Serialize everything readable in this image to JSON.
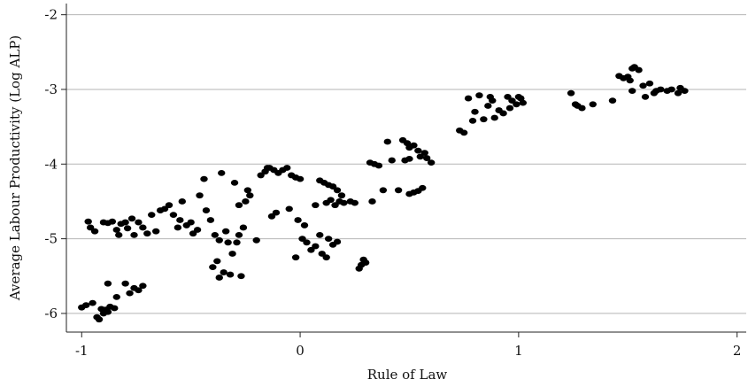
{
  "chart_data": {
    "type": "scatter",
    "xlabel": "Rule of Law",
    "ylabel": "Average Labour Productivity (Log ALP)",
    "xlim": [
      -1.07,
      2.05
    ],
    "ylim": [
      -6.25,
      -1.85
    ],
    "x_ticks": [
      {
        "value": -1,
        "label": "-1"
      },
      {
        "value": 0,
        "label": "0"
      },
      {
        "value": 1,
        "label": "1"
      },
      {
        "value": 2,
        "label": "2"
      }
    ],
    "y_ticks": [
      {
        "value": -2,
        "label": "-2"
      },
      {
        "value": -3,
        "label": "-3"
      },
      {
        "value": -4,
        "label": "-4"
      },
      {
        "value": -5,
        "label": "-5"
      },
      {
        "value": -6,
        "label": "-6"
      }
    ],
    "grid": "horizontal",
    "legend": "none",
    "marker_color": "#000000",
    "points": [
      {
        "x": -1.0,
        "y": -5.92
      },
      {
        "x": -0.98,
        "y": -5.89
      },
      {
        "x": -0.95,
        "y": -5.86
      },
      {
        "x": -0.93,
        "y": -6.05
      },
      {
        "x": -0.92,
        "y": -6.08
      },
      {
        "x": -0.9,
        "y": -6.0
      },
      {
        "x": -0.89,
        "y": -5.95
      },
      {
        "x": -0.88,
        "y": -5.98
      },
      {
        "x": -0.87,
        "y": -5.91
      },
      {
        "x": -0.85,
        "y": -5.93
      },
      {
        "x": -0.91,
        "y": -5.94
      },
      {
        "x": -0.88,
        "y": -5.6
      },
      {
        "x": -0.84,
        "y": -5.78
      },
      {
        "x": -0.8,
        "y": -5.6
      },
      {
        "x": -0.78,
        "y": -5.73
      },
      {
        "x": -0.76,
        "y": -5.66
      },
      {
        "x": -0.74,
        "y": -5.69
      },
      {
        "x": -0.72,
        "y": -5.63
      },
      {
        "x": -0.97,
        "y": -4.77
      },
      {
        "x": -0.96,
        "y": -4.85
      },
      {
        "x": -0.94,
        "y": -4.9
      },
      {
        "x": -0.9,
        "y": -4.78
      },
      {
        "x": -0.88,
        "y": -4.79
      },
      {
        "x": -0.86,
        "y": -4.77
      },
      {
        "x": -0.84,
        "y": -4.88
      },
      {
        "x": -0.83,
        "y": -4.95
      },
      {
        "x": -0.82,
        "y": -4.8
      },
      {
        "x": -0.8,
        "y": -4.78
      },
      {
        "x": -0.79,
        "y": -4.86
      },
      {
        "x": -0.77,
        "y": -4.73
      },
      {
        "x": -0.76,
        "y": -4.95
      },
      {
        "x": -0.74,
        "y": -4.78
      },
      {
        "x": -0.72,
        "y": -4.85
      },
      {
        "x": -0.7,
        "y": -4.93
      },
      {
        "x": -0.68,
        "y": -4.68
      },
      {
        "x": -0.66,
        "y": -4.9
      },
      {
        "x": -0.64,
        "y": -4.62
      },
      {
        "x": -0.62,
        "y": -4.6
      },
      {
        "x": -0.6,
        "y": -4.55
      },
      {
        "x": -0.58,
        "y": -4.68
      },
      {
        "x": -0.56,
        "y": -4.85
      },
      {
        "x": -0.55,
        "y": -4.75
      },
      {
        "x": -0.54,
        "y": -4.5
      },
      {
        "x": -0.52,
        "y": -4.82
      },
      {
        "x": -0.5,
        "y": -4.78
      },
      {
        "x": -0.49,
        "y": -4.93
      },
      {
        "x": -0.47,
        "y": -4.88
      },
      {
        "x": -0.46,
        "y": -4.42
      },
      {
        "x": -0.44,
        "y": -4.2
      },
      {
        "x": -0.43,
        "y": -4.62
      },
      {
        "x": -0.41,
        "y": -4.75
      },
      {
        "x": -0.39,
        "y": -4.95
      },
      {
        "x": -0.37,
        "y": -5.02
      },
      {
        "x": -0.36,
        "y": -4.12
      },
      {
        "x": -0.34,
        "y": -4.9
      },
      {
        "x": -0.33,
        "y": -5.05
      },
      {
        "x": -0.3,
        "y": -4.25
      },
      {
        "x": -0.28,
        "y": -4.55
      },
      {
        "x": -0.26,
        "y": -4.85
      },
      {
        "x": -0.25,
        "y": -4.5
      },
      {
        "x": -0.24,
        "y": -4.35
      },
      {
        "x": -0.23,
        "y": -4.42
      },
      {
        "x": -0.29,
        "y": -5.05
      },
      {
        "x": -0.38,
        "y": -5.3
      },
      {
        "x": -0.4,
        "y": -5.38
      },
      {
        "x": -0.35,
        "y": -5.45
      },
      {
        "x": -0.37,
        "y": -5.52
      },
      {
        "x": -0.32,
        "y": -5.48
      },
      {
        "x": -0.27,
        "y": -5.5
      },
      {
        "x": -0.31,
        "y": -5.2
      },
      {
        "x": -0.28,
        "y": -4.95
      },
      {
        "x": -0.2,
        "y": -5.02
      },
      {
        "x": -0.18,
        "y": -4.15
      },
      {
        "x": -0.16,
        "y": -4.1
      },
      {
        "x": -0.14,
        "y": -4.05
      },
      {
        "x": -0.12,
        "y": -4.08
      },
      {
        "x": -0.1,
        "y": -4.12
      },
      {
        "x": -0.08,
        "y": -4.08
      },
      {
        "x": -0.06,
        "y": -4.05
      },
      {
        "x": -0.04,
        "y": -4.15
      },
      {
        "x": -0.02,
        "y": -4.18
      },
      {
        "x": 0.0,
        "y": -4.2
      },
      {
        "x": -0.15,
        "y": -4.05
      },
      {
        "x": -0.13,
        "y": -4.7
      },
      {
        "x": -0.11,
        "y": -4.65
      },
      {
        "x": -0.05,
        "y": -4.6
      },
      {
        "x": -0.01,
        "y": -4.75
      },
      {
        "x": 0.02,
        "y": -4.82
      },
      {
        "x": 0.01,
        "y": -5.0
      },
      {
        "x": 0.03,
        "y": -5.05
      },
      {
        "x": 0.05,
        "y": -5.15
      },
      {
        "x": 0.07,
        "y": -5.1
      },
      {
        "x": 0.09,
        "y": -4.95
      },
      {
        "x": 0.1,
        "y": -5.2
      },
      {
        "x": 0.12,
        "y": -5.25
      },
      {
        "x": 0.13,
        "y": -5.0
      },
      {
        "x": 0.15,
        "y": -5.08
      },
      {
        "x": 0.17,
        "y": -5.04
      },
      {
        "x": -0.02,
        "y": -5.25
      },
      {
        "x": 0.07,
        "y": -4.55
      },
      {
        "x": 0.09,
        "y": -4.22
      },
      {
        "x": 0.11,
        "y": -4.25
      },
      {
        "x": 0.13,
        "y": -4.28
      },
      {
        "x": 0.15,
        "y": -4.3
      },
      {
        "x": 0.17,
        "y": -4.35
      },
      {
        "x": 0.19,
        "y": -4.42
      },
      {
        "x": 0.12,
        "y": -4.52
      },
      {
        "x": 0.14,
        "y": -4.48
      },
      {
        "x": 0.16,
        "y": -4.55
      },
      {
        "x": 0.18,
        "y": -4.5
      },
      {
        "x": 0.2,
        "y": -4.52
      },
      {
        "x": 0.23,
        "y": -4.5
      },
      {
        "x": 0.25,
        "y": -4.52
      },
      {
        "x": 0.27,
        "y": -5.4
      },
      {
        "x": 0.28,
        "y": -5.35
      },
      {
        "x": 0.29,
        "y": -5.28
      },
      {
        "x": 0.3,
        "y": -5.32
      },
      {
        "x": 0.32,
        "y": -3.98
      },
      {
        "x": 0.34,
        "y": -4.0
      },
      {
        "x": 0.36,
        "y": -4.02
      },
      {
        "x": 0.33,
        "y": -4.5
      },
      {
        "x": 0.38,
        "y": -4.35
      },
      {
        "x": 0.4,
        "y": -3.7
      },
      {
        "x": 0.42,
        "y": -3.95
      },
      {
        "x": 0.45,
        "y": -4.35
      },
      {
        "x": 0.47,
        "y": -3.68
      },
      {
        "x": 0.49,
        "y": -3.72
      },
      {
        "x": 0.5,
        "y": -3.78
      },
      {
        "x": 0.52,
        "y": -3.75
      },
      {
        "x": 0.54,
        "y": -3.82
      },
      {
        "x": 0.55,
        "y": -3.9
      },
      {
        "x": 0.57,
        "y": -3.85
      },
      {
        "x": 0.58,
        "y": -3.92
      },
      {
        "x": 0.6,
        "y": -3.98
      },
      {
        "x": 0.48,
        "y": -3.95
      },
      {
        "x": 0.5,
        "y": -3.93
      },
      {
        "x": 0.5,
        "y": -4.4
      },
      {
        "x": 0.52,
        "y": -4.38
      },
      {
        "x": 0.54,
        "y": -4.36
      },
      {
        "x": 0.56,
        "y": -4.32
      },
      {
        "x": 0.73,
        "y": -3.55
      },
      {
        "x": 0.75,
        "y": -3.58
      },
      {
        "x": 0.77,
        "y": -3.12
      },
      {
        "x": 0.79,
        "y": -3.42
      },
      {
        "x": 0.8,
        "y": -3.3
      },
      {
        "x": 0.82,
        "y": -3.08
      },
      {
        "x": 0.84,
        "y": -3.4
      },
      {
        "x": 0.86,
        "y": -3.22
      },
      {
        "x": 0.87,
        "y": -3.1
      },
      {
        "x": 0.88,
        "y": -3.15
      },
      {
        "x": 0.89,
        "y": -3.38
      },
      {
        "x": 0.91,
        "y": -3.28
      },
      {
        "x": 0.93,
        "y": -3.32
      },
      {
        "x": 0.95,
        "y": -3.1
      },
      {
        "x": 0.97,
        "y": -3.15
      },
      {
        "x": 0.99,
        "y": -3.2
      },
      {
        "x": 1.0,
        "y": -3.1
      },
      {
        "x": 1.01,
        "y": -3.12
      },
      {
        "x": 1.02,
        "y": -3.18
      },
      {
        "x": 0.96,
        "y": -3.25
      },
      {
        "x": 1.24,
        "y": -3.05
      },
      {
        "x": 1.26,
        "y": -3.2
      },
      {
        "x": 1.27,
        "y": -3.22
      },
      {
        "x": 1.29,
        "y": -3.25
      },
      {
        "x": 1.34,
        "y": -3.2
      },
      {
        "x": 1.43,
        "y": -3.15
      },
      {
        "x": 1.46,
        "y": -2.82
      },
      {
        "x": 1.48,
        "y": -2.85
      },
      {
        "x": 1.5,
        "y": -2.83
      },
      {
        "x": 1.51,
        "y": -2.88
      },
      {
        "x": 1.52,
        "y": -2.72
      },
      {
        "x": 1.53,
        "y": -2.7
      },
      {
        "x": 1.55,
        "y": -2.74
      },
      {
        "x": 1.57,
        "y": -2.95
      },
      {
        "x": 1.58,
        "y": -3.1
      },
      {
        "x": 1.6,
        "y": -2.92
      },
      {
        "x": 1.62,
        "y": -3.05
      },
      {
        "x": 1.63,
        "y": -3.02
      },
      {
        "x": 1.65,
        "y": -3.0
      },
      {
        "x": 1.68,
        "y": -3.02
      },
      {
        "x": 1.7,
        "y": -3.0
      },
      {
        "x": 1.73,
        "y": -3.05
      },
      {
        "x": 1.74,
        "y": -2.98
      },
      {
        "x": 1.76,
        "y": -3.02
      },
      {
        "x": 1.52,
        "y": -3.02
      }
    ]
  }
}
